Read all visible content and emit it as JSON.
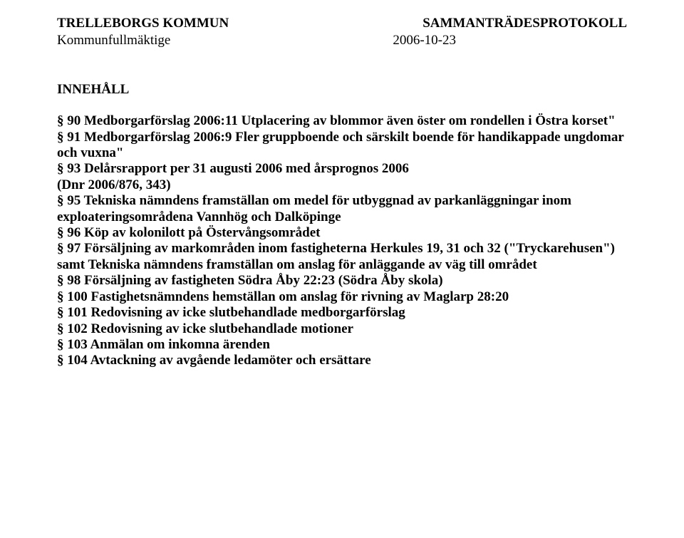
{
  "header": {
    "org": "TRELLEBORGS KOMMUN",
    "doc_type": "SAMMANTRÄDESPROTOKOLL",
    "body": "Kommunfullmäktige",
    "date": "2006-10-23"
  },
  "toc": {
    "heading": "INNEHÅLL",
    "items": [
      "§ 90 Medborgarförslag 2006:11 Utplacering av blommor även öster om rondellen i Östra korset\"",
      "§ 91 Medborgarförslag 2006:9 Fler gruppboende och särskilt boende för handikappade ungdomar och vuxna\"",
      "§ 93 Delårsrapport per 31 augusti 2006 med årsprognos 2006",
      "(Dnr 2006/876, 343)",
      "§ 95 Tekniska nämndens framställan om medel för utbyggnad av parkanläggningar inom exploateringsområdena Vannhög och Dalköpinge",
      "§ 96 Köp av kolonilott på Östervångsområdet",
      "§ 97 Försäljning av markområden inom fastigheterna Herkules 19, 31 och 32 (\"Tryckarehusen\") samt Tekniska nämndens framställan om anslag för anläggande av väg till området",
      "§ 98 Försäljning av fastigheten Södra Åby 22:23 (Södra Åby skola)",
      "§ 100 Fastighetsnämndens hemställan om anslag för rivning av Maglarp 28:20",
      "§ 101 Redovisning av icke slutbehandlade medborgarförslag",
      "§ 102 Redovisning av icke slutbehandlade motioner",
      "§ 103 Anmälan om inkomna ärenden",
      "§ 104 Avtackning av avgående ledamöter och ersättare"
    ]
  },
  "style": {
    "font_family": "Times New Roman",
    "base_fontsize_pt": 14,
    "text_color": "#000000",
    "background_color": "#ffffff",
    "bold_weight": 700
  }
}
